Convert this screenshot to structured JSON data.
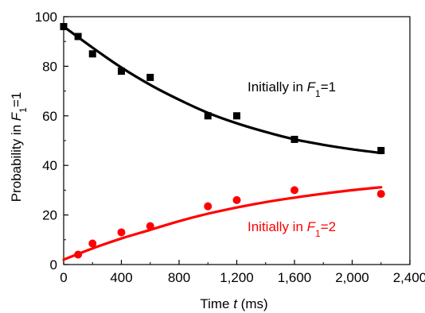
{
  "chart_data": {
    "type": "scatter",
    "xlabel": {
      "pre": "Time ",
      "var": "t",
      "post": " (ms)"
    },
    "ylabel": {
      "pre": "Probability in ",
      "var": "F",
      "sub": "1",
      "post": "=1"
    },
    "xlim": [
      0,
      2400
    ],
    "ylim": [
      0,
      100
    ],
    "xticks": [
      0,
      400,
      800,
      1200,
      1600,
      2000,
      2400
    ],
    "xtick_labels": [
      "0",
      "400",
      "800",
      "1,200",
      "1,600",
      "2,000",
      "2,400"
    ],
    "yticks": [
      0,
      20,
      40,
      60,
      80,
      100
    ],
    "ytick_labels": [
      "0",
      "20",
      "40",
      "60",
      "80",
      "100"
    ],
    "grid": false,
    "series": [
      {
        "name": "Initially in F1=1",
        "label": {
          "pre": "Initially in ",
          "var": "F",
          "sub": "1",
          "post": "=1"
        },
        "color": "#000000",
        "marker": "square",
        "x": [
          0,
          100,
          200,
          400,
          600,
          1000,
          1200,
          1600,
          2200
        ],
        "y": [
          96,
          92,
          85,
          78,
          75.5,
          60,
          60,
          50.5,
          46
        ],
        "fit": {
          "x": [
            0,
            200,
            400,
            600,
            800,
            1000,
            1200,
            1400,
            1600,
            1800,
            2000,
            2200
          ],
          "y": [
            96,
            87.5,
            79.5,
            72.5,
            66.5,
            61.2,
            57,
            53.5,
            50.5,
            48.3,
            46.5,
            45
          ]
        }
      },
      {
        "name": "Initially in F1=2",
        "label": {
          "pre": "Initially in ",
          "var": "F",
          "sub": "1",
          "post": "=2"
        },
        "color": "#ff0000",
        "marker": "circle",
        "x": [
          100,
          200,
          400,
          600,
          1000,
          1200,
          1600,
          2200
        ],
        "y": [
          4,
          8.5,
          13,
          15.5,
          23.5,
          26,
          30,
          28.5
        ],
        "fit": {
          "x": [
            0,
            200,
            400,
            600,
            800,
            1000,
            1200,
            1400,
            1600,
            1800,
            2000,
            2200
          ],
          "y": [
            2,
            6.5,
            10.5,
            14,
            17.5,
            20.5,
            23,
            25.2,
            27,
            28.6,
            30,
            31.2
          ]
        }
      }
    ]
  }
}
